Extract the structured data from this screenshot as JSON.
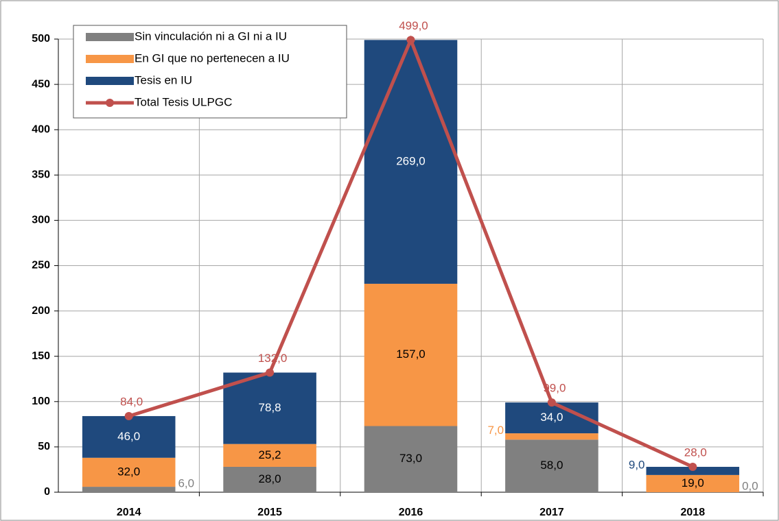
{
  "chart_data": {
    "type": "bar",
    "categories": [
      "2014",
      "2015",
      "2016",
      "2017",
      "2018"
    ],
    "stacked": true,
    "ylim": [
      0,
      500
    ],
    "yticks": [
      0,
      50,
      100,
      150,
      200,
      250,
      300,
      350,
      400,
      450,
      500
    ],
    "grid": true,
    "legend": "upper left",
    "series": [
      {
        "name": "Sin vinculación ni a GI ni a IU",
        "color": "#808080",
        "values": [
          6,
          28,
          73,
          58,
          0
        ],
        "value_labels": [
          "6,0",
          "28,0",
          "73,0",
          "58,0",
          "0,0"
        ]
      },
      {
        "name": "En GI que no pertenecen a IU",
        "color": "#f79646",
        "values": [
          32,
          25.2,
          157,
          7,
          19
        ],
        "value_labels": [
          "32,0",
          "25,2",
          "157,0",
          "7,0",
          "19,0"
        ]
      },
      {
        "name": "Tesis en IU",
        "color": "#1f497d",
        "values": [
          46,
          78.8,
          269,
          34,
          9
        ],
        "value_labels": [
          "46,0",
          "78,8",
          "269,0",
          "34,0",
          "9,0"
        ]
      },
      {
        "name": "Total Tesis ULPGC",
        "type": "line",
        "color": "#c0504d",
        "values": [
          84,
          132,
          499,
          99,
          28
        ],
        "value_labels": [
          "84,0",
          "132,0",
          "499,0",
          "99,0",
          "28,0"
        ]
      }
    ]
  }
}
